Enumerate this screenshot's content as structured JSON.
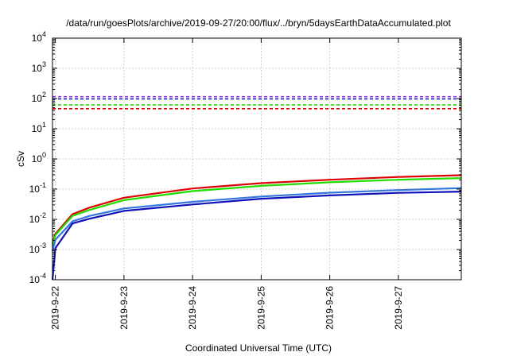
{
  "chart_data": {
    "type": "line",
    "title": "/data/run/goesPlots/archive/2019-09-27/20:00/flux/../bryn/5daysEarthDataAccumulated.plot",
    "xlabel": "Coordinated Universal Time (UTC)",
    "ylabel": "cSv",
    "y_scale": "log",
    "ylim_exp": [
      -4,
      4
    ],
    "y_ticks": [
      {
        "base": "10",
        "exp": "-4",
        "value_exp": -4
      },
      {
        "base": "10",
        "exp": "-3",
        "value_exp": -3
      },
      {
        "base": "10",
        "exp": "-2",
        "value_exp": -2
      },
      {
        "base": "10",
        "exp": "-1",
        "value_exp": -1
      },
      {
        "base": "10",
        "exp": "0",
        "value_exp": 0
      },
      {
        "base": "10",
        "exp": "1",
        "value_exp": 1
      },
      {
        "base": "10",
        "exp": "2",
        "value_exp": 2
      },
      {
        "base": "10",
        "exp": "3",
        "value_exp": 3
      },
      {
        "base": "10",
        "exp": "4",
        "value_exp": 4
      }
    ],
    "x_range": [
      "2019-09-21T23:00",
      "2019-09-27T22:00"
    ],
    "x_ticks": [
      {
        "label": "2019-9-22",
        "at": "2019-09-22T00:00"
      },
      {
        "label": "2019-9-23",
        "at": "2019-09-23T00:00"
      },
      {
        "label": "2019-9-24",
        "at": "2019-09-24T00:00"
      },
      {
        "label": "2019-9-25",
        "at": "2019-09-25T00:00"
      },
      {
        "label": "2019-9-26",
        "at": "2019-09-26T00:00"
      },
      {
        "label": "2019-9-27",
        "at": "2019-09-27T00:00"
      }
    ],
    "grid": true,
    "series": [
      {
        "color": "#dd0000",
        "style": "solid",
        "points": [
          [
            "2019-09-21T23:00",
            0.0015
          ],
          [
            "2019-09-22T00:00",
            0.0033
          ],
          [
            "2019-09-22T06:00",
            0.0148
          ],
          [
            "2019-09-22T12:00",
            0.0245
          ],
          [
            "2019-09-23T00:00",
            0.052
          ],
          [
            "2019-09-24T00:00",
            0.105
          ],
          [
            "2019-09-25T00:00",
            0.158
          ],
          [
            "2019-09-26T00:00",
            0.205
          ],
          [
            "2019-09-27T00:00",
            0.252
          ],
          [
            "2019-09-27T22:00",
            0.288
          ]
        ]
      },
      {
        "color": "#22dd00",
        "style": "solid",
        "points": [
          [
            "2019-09-21T23:00",
            0.0013
          ],
          [
            "2019-09-22T00:00",
            0.003
          ],
          [
            "2019-09-22T06:00",
            0.013
          ],
          [
            "2019-09-22T12:00",
            0.0205
          ],
          [
            "2019-09-23T00:00",
            0.043
          ],
          [
            "2019-09-24T00:00",
            0.086
          ],
          [
            "2019-09-25T00:00",
            0.128
          ],
          [
            "2019-09-26T00:00",
            0.168
          ],
          [
            "2019-09-27T00:00",
            0.205
          ],
          [
            "2019-09-27T22:00",
            0.232
          ]
        ]
      },
      {
        "color": "#3377dd",
        "style": "solid",
        "points": [
          [
            "2019-09-21T23:00",
            0.0009
          ],
          [
            "2019-09-22T00:00",
            0.0021
          ],
          [
            "2019-09-22T06:00",
            0.0086
          ],
          [
            "2019-09-22T12:00",
            0.013
          ],
          [
            "2019-09-23T00:00",
            0.023
          ],
          [
            "2019-09-24T00:00",
            0.038
          ],
          [
            "2019-09-25T00:00",
            0.057
          ],
          [
            "2019-09-26T00:00",
            0.076
          ],
          [
            "2019-09-27T00:00",
            0.093
          ],
          [
            "2019-09-27T22:00",
            0.108
          ]
        ]
      },
      {
        "color": "#1111bb",
        "style": "solid",
        "points": [
          [
            "2019-09-21T23:00",
            0.0001
          ],
          [
            "2019-09-22T00:00",
            0.0011
          ],
          [
            "2019-09-22T06:00",
            0.0073
          ],
          [
            "2019-09-22T12:00",
            0.0105
          ],
          [
            "2019-09-23T00:00",
            0.019
          ],
          [
            "2019-09-24T00:00",
            0.031
          ],
          [
            "2019-09-25T00:00",
            0.048
          ],
          [
            "2019-09-26T00:00",
            0.062
          ],
          [
            "2019-09-27T00:00",
            0.075
          ],
          [
            "2019-09-27T22:00",
            0.083
          ]
        ]
      },
      {
        "color": "#9933cc",
        "style": "dashed",
        "points": [
          [
            "2019-09-21T23:00",
            115
          ],
          [
            "2019-09-27T22:00",
            115
          ]
        ]
      },
      {
        "color": "#1111bb",
        "style": "dashed",
        "points": [
          [
            "2019-09-21T23:00",
            97
          ],
          [
            "2019-09-27T22:00",
            97
          ]
        ]
      },
      {
        "color": "#22dd00",
        "style": "dashed",
        "points": [
          [
            "2019-09-21T23:00",
            62
          ],
          [
            "2019-09-27T22:00",
            62
          ]
        ]
      },
      {
        "color": "#dd0000",
        "style": "dashed",
        "points": [
          [
            "2019-09-21T23:00",
            46
          ],
          [
            "2019-09-27T22:00",
            46
          ]
        ]
      }
    ]
  }
}
